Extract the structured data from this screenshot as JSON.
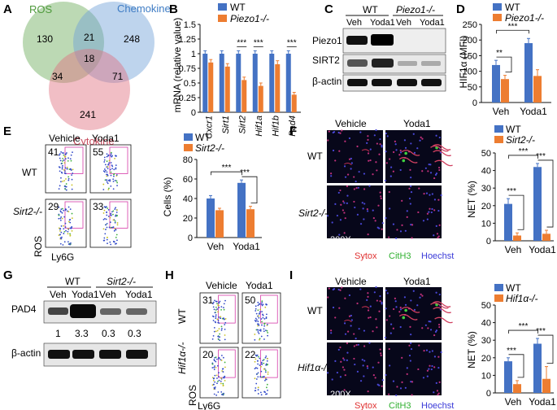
{
  "colors": {
    "wt": "#4472c4",
    "ko": "#ed7d31",
    "ros": "#6aaa58",
    "chemokine": "#6fa0d6",
    "cytokine": "#df6f7f",
    "gate": "#d63aa8",
    "sytox": "#e03030",
    "cith3": "#30b030",
    "hoechst": "#3a3ad8"
  },
  "panel_labels": [
    "A",
    "B",
    "C",
    "D",
    "E",
    "F",
    "G",
    "H",
    "I"
  ],
  "venn": {
    "sets": [
      "ROS",
      "Chemokine",
      "Cytokine"
    ],
    "counts": {
      "ros_only": "130",
      "chemokine_only": "248",
      "cytokine_only": "241",
      "ros_chemokine": "21",
      "ros_cytokine": "34",
      "chemokine_cytokine": "71",
      "all": "18"
    }
  },
  "panelB": {
    "legend": [
      "WT",
      "Piezo1-/-"
    ],
    "ylabel": "mRNA (relative value)",
    "sig": "***"
  },
  "panelC": {
    "groups": [
      "WT",
      "Piezo1-/-"
    ],
    "lanes": [
      "Veh",
      "Yoda1",
      "Veh",
      "Yoda1"
    ],
    "rows": [
      "Piezo1",
      "SIRT2",
      "β-actin"
    ]
  },
  "panelD": {
    "legend": [
      "WT",
      "Piezo1-/-"
    ],
    "ylabel": "HIF1α (MFI)"
  },
  "panelE": {
    "cols": [
      "Vehicle",
      "Yoda1"
    ],
    "rows": [
      "WT",
      "Sirt2-/-"
    ],
    "pcts": [
      "41",
      "55",
      "29",
      "33"
    ],
    "xlab": "Ly6G",
    "ylab": "ROS",
    "legend": [
      "WT",
      "Sirt2-/-"
    ]
  },
  "panelF": {
    "cols": [
      "Vehicle",
      "Yoda1"
    ],
    "rows": [
      "WT",
      "Sirt2-/-"
    ],
    "mag": "200X",
    "stains": [
      "Sytox",
      "CitH3",
      "Hoechst"
    ],
    "legend": [
      "WT",
      "Sirt2-/-"
    ]
  },
  "panelG": {
    "groups": [
      "WT",
      "Sirt2-/-"
    ],
    "lanes": [
      "Veh",
      "Yoda1",
      "Veh",
      "Yoda1"
    ],
    "rows": [
      "PAD4",
      "β-actin"
    ],
    "quant": [
      "1",
      "3.3",
      "0.3",
      "0.3"
    ]
  },
  "panelH": {
    "cols": [
      "Vehicle",
      "Yoda1"
    ],
    "rows": [
      "WT",
      "Hif1α-/-"
    ],
    "pcts": [
      "31",
      "50",
      "20",
      "22"
    ],
    "xlab": "Ly6G",
    "ylab": "ROS"
  },
  "panelI": {
    "cols": [
      "Vehicle",
      "Yoda1"
    ],
    "rows": [
      "WT",
      "Hif1α-/-"
    ],
    "mag": "200X",
    "stains": [
      "Sytox",
      "CitH3",
      "Hoechst"
    ],
    "legend": [
      "WT",
      "Hif1α-/-"
    ]
  },
  "chart_data": [
    {
      "id": "B",
      "type": "bar",
      "categories": [
        "Cxcr1",
        "Sirt1",
        "Sirt2",
        "Hif1a",
        "Hif1b",
        "Pad4"
      ],
      "series": [
        {
          "name": "WT",
          "values": [
            1.0,
            1.0,
            1.0,
            1.0,
            1.0,
            1.0
          ],
          "err": [
            0.05,
            0.05,
            0.05,
            0.05,
            0.05,
            0.05
          ]
        },
        {
          "name": "Piezo1-/-",
          "values": [
            0.85,
            0.78,
            0.55,
            0.45,
            0.82,
            0.3
          ],
          "err": [
            0.05,
            0.05,
            0.05,
            0.05,
            0.06,
            0.04
          ]
        }
      ],
      "ylabel": "mRNA (relative value)",
      "ylim": [
        0,
        1.5
      ],
      "yticks": [
        0,
        0.25,
        0.5,
        0.75,
        1,
        1.25,
        1.5
      ],
      "sig": [
        {
          "cat": 2,
          "label": "***"
        },
        {
          "cat": 3,
          "label": "***"
        },
        {
          "cat": 5,
          "label": "***"
        }
      ]
    },
    {
      "id": "D",
      "type": "bar",
      "categories": [
        "Veh",
        "Yoda1"
      ],
      "series": [
        {
          "name": "WT",
          "values": [
            120,
            190
          ],
          "err": [
            15,
            15
          ]
        },
        {
          "name": "Piezo1-/-",
          "values": [
            75,
            85
          ],
          "err": [
            12,
            20
          ]
        }
      ],
      "ylabel": "HIF1α (MFI)",
      "ylim": [
        0,
        250
      ],
      "yticks": [
        0,
        50,
        100,
        150,
        200,
        250
      ],
      "sig": [
        {
          "type": "pair",
          "cat": 0,
          "label": "**"
        },
        {
          "type": "between",
          "label": "***"
        }
      ]
    },
    {
      "id": "E",
      "type": "bar",
      "categories": [
        "Veh",
        "Yoda1"
      ],
      "series": [
        {
          "name": "WT",
          "values": [
            40,
            56
          ],
          "err": [
            3,
            3
          ]
        },
        {
          "name": "Sirt2-/-",
          "values": [
            28,
            29
          ],
          "err": [
            2,
            3
          ]
        }
      ],
      "ylabel": "Cells (%)",
      "ylim": [
        0,
        80
      ],
      "yticks": [
        0,
        20,
        40,
        60,
        80
      ],
      "sig": [
        {
          "type": "between",
          "label": "***"
        },
        {
          "type": "pair",
          "cat": 1,
          "label": "***"
        }
      ]
    },
    {
      "id": "F",
      "type": "bar",
      "categories": [
        "Veh",
        "Yoda1"
      ],
      "series": [
        {
          "name": "WT",
          "values": [
            21,
            42
          ],
          "err": [
            3,
            2
          ]
        },
        {
          "name": "Sirt2-/-",
          "values": [
            3,
            4
          ],
          "err": [
            1.5,
            2
          ]
        }
      ],
      "ylabel": "NET (%)",
      "ylim": [
        0,
        50
      ],
      "yticks": [
        0,
        10,
        20,
        30,
        40,
        50
      ],
      "sig": [
        {
          "type": "pair",
          "cat": 0,
          "label": "***"
        },
        {
          "type": "between",
          "label": "***"
        },
        {
          "type": "pair",
          "cat": 1,
          "label": "***"
        }
      ]
    },
    {
      "id": "I",
      "type": "bar",
      "categories": [
        "Veh",
        "Yoda1"
      ],
      "series": [
        {
          "name": "WT",
          "values": [
            18,
            28
          ],
          "err": [
            2,
            3
          ]
        },
        {
          "name": "Hif1α-/-",
          "values": [
            5,
            8
          ],
          "err": [
            2,
            7
          ]
        }
      ],
      "ylabel": "NET (%)",
      "ylim": [
        0,
        50
      ],
      "yticks": [
        0,
        10,
        20,
        30,
        40,
        50
      ],
      "sig": [
        {
          "type": "pair",
          "cat": 0,
          "label": "***"
        },
        {
          "type": "between",
          "label": "***"
        },
        {
          "type": "pair",
          "cat": 1,
          "label": "***"
        }
      ]
    }
  ]
}
